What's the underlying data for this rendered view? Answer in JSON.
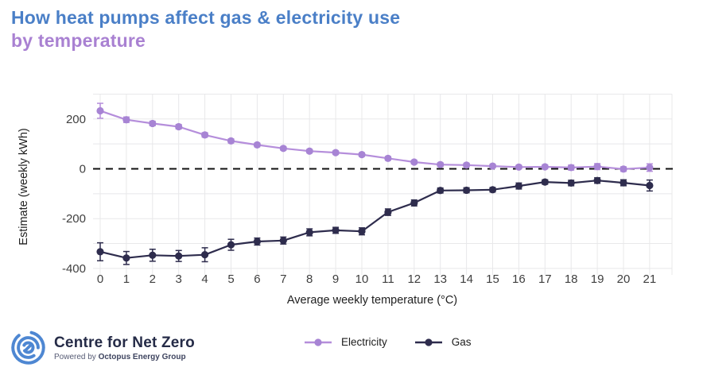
{
  "title": {
    "line1": "How heat pumps affect gas & electricity use",
    "line2": "by temperature",
    "line1_color": "#4a7fc7",
    "line2_color": "#a981d2"
  },
  "chart_data": {
    "type": "line",
    "x": [
      0,
      1,
      2,
      3,
      4,
      5,
      6,
      7,
      8,
      9,
      10,
      11,
      12,
      13,
      14,
      15,
      16,
      17,
      18,
      19,
      20,
      21
    ],
    "series": [
      {
        "name": "Electricity",
        "color": "#b58edb",
        "marker_color": "#a784d4",
        "values": [
          233,
          197,
          182,
          169,
          136,
          112,
          96,
          82,
          71,
          65,
          57,
          42,
          27,
          17,
          15,
          11,
          7,
          8,
          5,
          9,
          -1,
          5
        ],
        "errors": [
          30,
          11,
          9,
          9,
          9,
          8,
          7,
          7,
          7,
          7,
          7,
          7,
          7,
          7,
          7,
          7,
          7,
          8,
          10,
          12,
          9,
          15
        ]
      },
      {
        "name": "Gas",
        "color": "#2e2c4d",
        "marker_color": "#2e2c4d",
        "values": [
          -333,
          -358,
          -347,
          -350,
          -345,
          -305,
          -292,
          -288,
          -255,
          -247,
          -251,
          -174,
          -137,
          -87,
          -86,
          -84,
          -69,
          -53,
          -57,
          -47,
          -56,
          -67
        ],
        "errors": [
          36,
          26,
          24,
          22,
          28,
          22,
          14,
          14,
          14,
          12,
          14,
          13,
          12,
          10,
          10,
          9,
          12,
          9,
          11,
          11,
          12,
          22
        ]
      }
    ],
    "xlabel": "Average weekly temperature (°C)",
    "ylabel": "Estimate (weekly kWh)",
    "ylim": [
      -425,
      300
    ],
    "yticks_labeled": [
      200,
      0,
      -200,
      -400
    ],
    "gridlines_y": [
      300,
      200,
      100,
      -100,
      -200,
      -300,
      -400
    ],
    "zero_line": true,
    "grid": true,
    "legend_position": "bottom-center",
    "grid_color": "#e8e8ea",
    "zero_line_color": "#111111",
    "tick_color": "#3f3f3f",
    "axis_label_color": "#202020"
  },
  "footer": {
    "brand": "Centre for Net Zero",
    "powered_prefix": "Powered by ",
    "powered_bold": "Octopus Energy Group",
    "logo_color": "#4e87d2"
  }
}
